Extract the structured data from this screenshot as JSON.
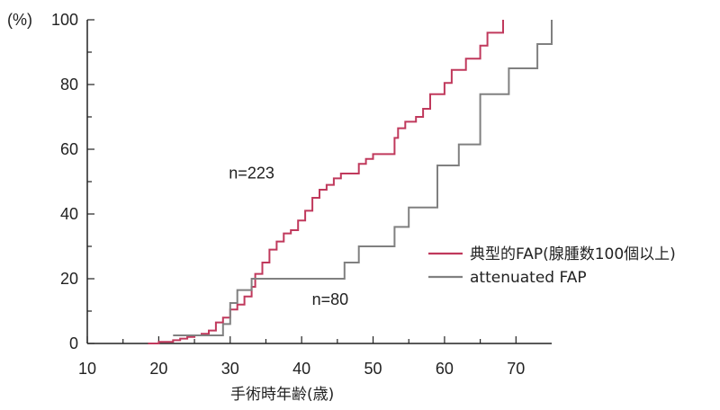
{
  "chart_data": {
    "type": "line",
    "step": true,
    "ylabel": "(%)",
    "xlabel": "手術時年齢(歳)",
    "xlim": [
      10,
      75
    ],
    "ylim": [
      0,
      100
    ],
    "x_ticks": [
      10,
      20,
      30,
      40,
      50,
      60,
      70
    ],
    "y_ticks": [
      0,
      20,
      40,
      60,
      80,
      100
    ],
    "annotations": [
      {
        "text": "n=223",
        "x": 33,
        "y": 51
      },
      {
        "text": "n=80",
        "x": 44,
        "y": 12
      }
    ],
    "legend_position": "right",
    "series": [
      {
        "name": "典型的FAP(腺腫数100個以上)",
        "color": "#c0395c",
        "points": [
          [
            18.5,
            0
          ],
          [
            20,
            0.5
          ],
          [
            22,
            1
          ],
          [
            23,
            1.5
          ],
          [
            24,
            2
          ],
          [
            25,
            2.5
          ],
          [
            26,
            3
          ],
          [
            27,
            4
          ],
          [
            28,
            6.5
          ],
          [
            29,
            8
          ],
          [
            30,
            10.5
          ],
          [
            31,
            12
          ],
          [
            32,
            14.5
          ],
          [
            33,
            17.5
          ],
          [
            33.5,
            21.5
          ],
          [
            34.5,
            25
          ],
          [
            35.5,
            29
          ],
          [
            36.5,
            31.5
          ],
          [
            37.5,
            34
          ],
          [
            38.5,
            35
          ],
          [
            39.5,
            38
          ],
          [
            40.5,
            41
          ],
          [
            41.5,
            45
          ],
          [
            42.5,
            47.5
          ],
          [
            43.5,
            49
          ],
          [
            44.5,
            51
          ],
          [
            45.5,
            52.5
          ],
          [
            48,
            55.5
          ],
          [
            49,
            57
          ],
          [
            50,
            58.5
          ],
          [
            53,
            63.5
          ],
          [
            53.5,
            66.5
          ],
          [
            54.5,
            68.5
          ],
          [
            56,
            70
          ],
          [
            57,
            72.5
          ],
          [
            58,
            77
          ],
          [
            60,
            80.5
          ],
          [
            61,
            84.5
          ],
          [
            63,
            88
          ],
          [
            65,
            92
          ],
          [
            66,
            96
          ],
          [
            68.2,
            100
          ]
        ]
      },
      {
        "name": "attenuated FAP",
        "color": "#808080",
        "points": [
          [
            22,
            2.5
          ],
          [
            29,
            6
          ],
          [
            30,
            12.5
          ],
          [
            31,
            16.5
          ],
          [
            33,
            20
          ],
          [
            46,
            25
          ],
          [
            48,
            30
          ],
          [
            53,
            36
          ],
          [
            55,
            42
          ],
          [
            59,
            55
          ],
          [
            62,
            61.5
          ],
          [
            65,
            77
          ],
          [
            69,
            85
          ],
          [
            73,
            92.5
          ],
          [
            75,
            100
          ]
        ]
      }
    ]
  }
}
